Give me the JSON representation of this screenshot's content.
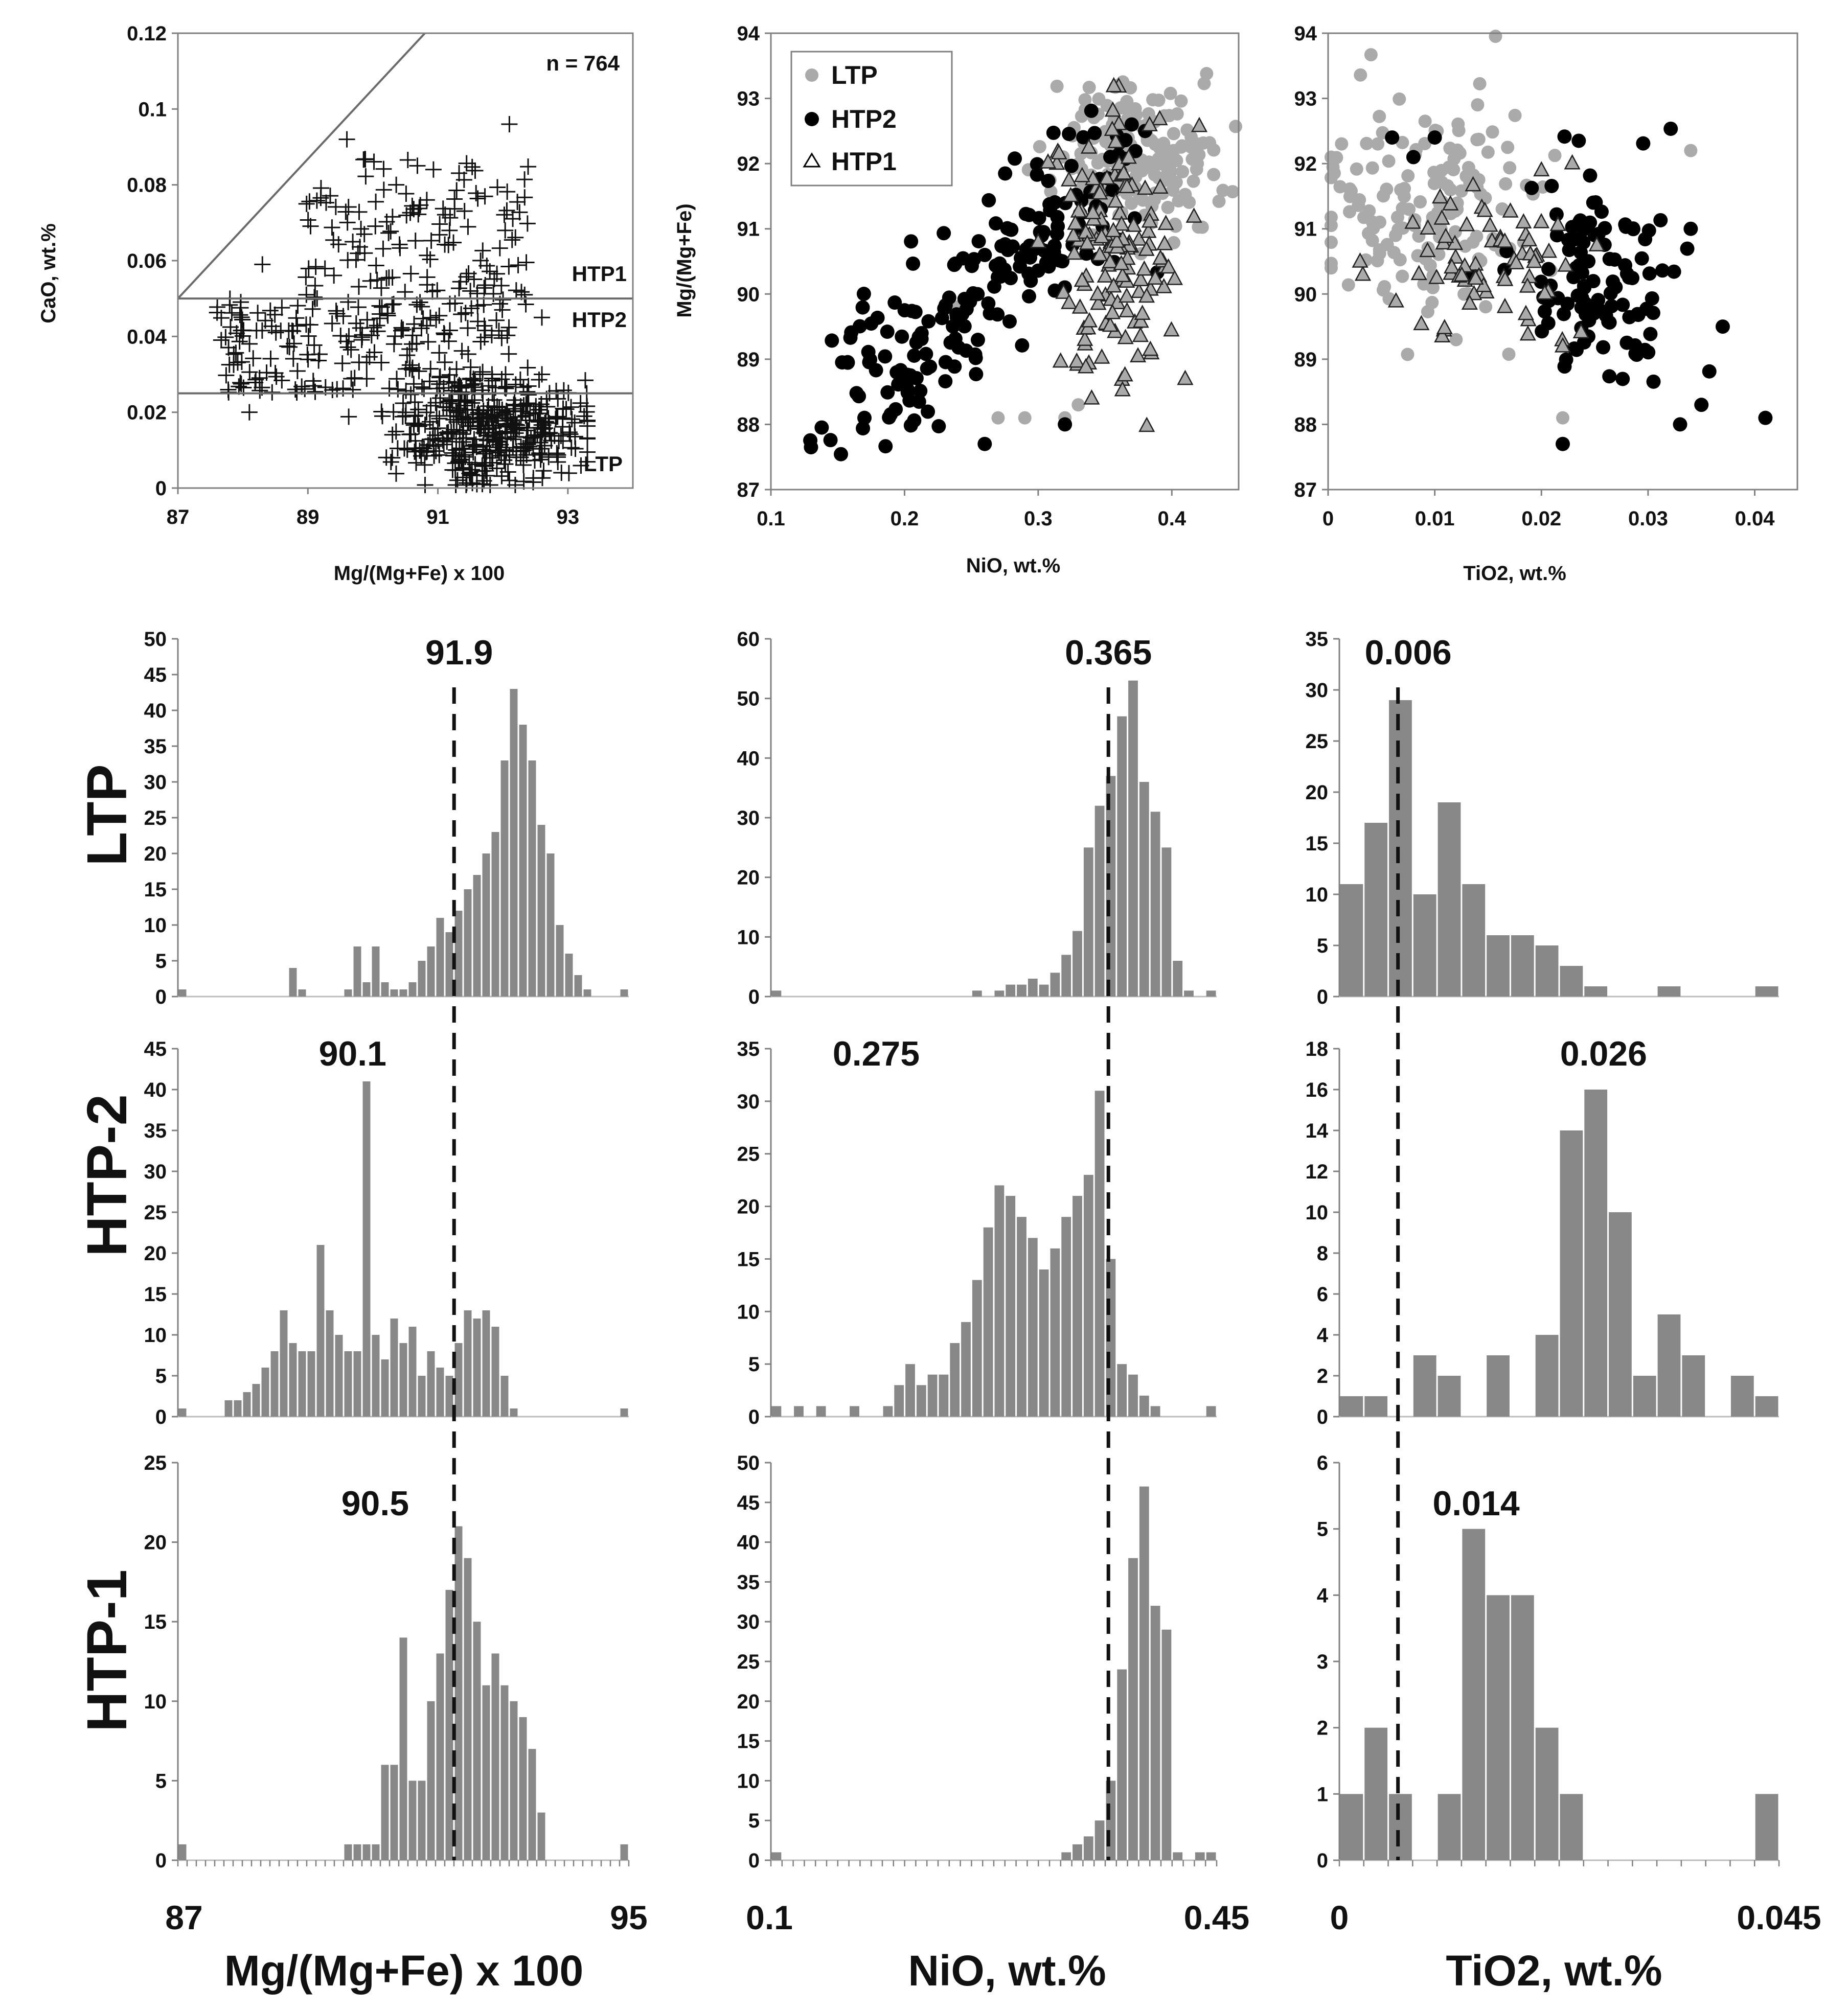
{
  "chart_data": [
    {
      "id": "scatter-cao",
      "type": "scatter",
      "xlabel": "Mg/(Mg+Fe) x 100",
      "ylabel": "CaO, wt.%",
      "xlim": [
        87,
        94
      ],
      "ylim": [
        0,
        0.12
      ],
      "xticks": [
        87,
        89,
        91,
        93
      ],
      "yticks": [
        0,
        0.02,
        0.04,
        0.06,
        0.08,
        0.1,
        0.12
      ],
      "ytick_labels": [
        "0",
        "0.02",
        "0.04",
        "0.06",
        "0.08",
        "0.1",
        "0.12"
      ],
      "annotation": "n = 764",
      "reference_lines": [
        {
          "label": "HTP1",
          "x": [
            87,
            94
          ],
          "y": [
            0.05,
            0.05
          ]
        },
        {
          "label": "HTP2",
          "x": [
            87,
            94
          ],
          "y": [
            0.025,
            0.025
          ]
        },
        {
          "label": "",
          "x": [
            87,
            90.8
          ],
          "y": [
            0.05,
            0.12
          ]
        }
      ],
      "region_labels": [
        {
          "label": "HTP1",
          "x": 93.7,
          "y": 0.056
        },
        {
          "label": "HTP2",
          "x": 93.7,
          "y": 0.043
        },
        {
          "label": "LTP",
          "x": 93.5,
          "y": 0.005
        }
      ],
      "marker": "plus",
      "point_groups": [
        {
          "name": "HTP1",
          "n": 140,
          "x_range": [
            88.9,
            92.4
          ],
          "y_range": [
            0.05,
            0.087
          ],
          "seed": 11,
          "extra": [
            [
              89.6,
              0.092
            ],
            [
              92.1,
              0.096
            ],
            [
              88.3,
              0.059
            ],
            [
              91.5,
              0.052
            ]
          ]
        },
        {
          "name": "HTP2",
          "n": 210,
          "x_range": [
            87.6,
            92.4
          ],
          "y_range": [
            0.025,
            0.05
          ],
          "seed": 23,
          "extra": [
            [
              88.1,
              0.02
            ],
            [
              92.6,
              0.045
            ]
          ]
        },
        {
          "name": "LTP",
          "n": 414,
          "x_range": [
            87.5,
            93.3
          ],
          "y_range": [
            0.0,
            0.03
          ],
          "center": [
            91.8,
            0.016
          ],
          "seed": 37,
          "extra": [
            [
              91.6,
              0.001
            ],
            [
              92.1,
              0.002
            ]
          ]
        }
      ]
    },
    {
      "id": "scatter-nio",
      "type": "scatter",
      "xlabel": "NiO, wt.%",
      "ylabel": "Mg/(Mg+Fe)",
      "xlim": [
        0.1,
        0.45
      ],
      "ylim": [
        87,
        94
      ],
      "xticks": [
        0.1,
        0.2,
        0.3,
        0.4
      ],
      "xtick_labels": [
        "0.1",
        "0.2",
        "0.3",
        "0.4"
      ],
      "yticks": [
        87,
        88,
        89,
        90,
        91,
        92,
        93,
        94
      ],
      "legend": [
        {
          "name": "LTP",
          "marker": "circle",
          "color": "#aaaaaa"
        },
        {
          "name": "HTP2",
          "marker": "circle",
          "color": "#000000"
        },
        {
          "name": "HTP1",
          "marker": "triangle",
          "color": "#aaaaaa"
        }
      ],
      "point_groups": [
        {
          "name": "LTP",
          "marker": "circle",
          "color": "#aaaaaa",
          "n": 180,
          "center": [
            0.375,
            92.1
          ],
          "spread": [
            0.03,
            0.55
          ],
          "seed": 101,
          "extra": [
            [
              0.27,
              88.1
            ],
            [
              0.29,
              88.1
            ],
            [
              0.32,
              88.1
            ],
            [
              0.33,
              88.3
            ],
            [
              0.24,
              89.8
            ],
            [
              0.25,
              90.5
            ],
            [
              0.36,
              93.2
            ],
            [
              0.42,
              92.3
            ]
          ]
        },
        {
          "name": "HTP2",
          "marker": "circle",
          "color": "#000000",
          "n": 190,
          "seed": 202,
          "trend": [
            [
              0.17,
              88.4
            ],
            [
              0.35,
              91.8
            ]
          ],
          "spread": [
            0.025,
            0.55
          ],
          "extra": [
            [
              0.13,
              87.65
            ],
            [
              0.17,
              88.1
            ],
            [
              0.26,
              87.7
            ],
            [
              0.32,
              88.0
            ],
            [
              0.37,
              92.6
            ],
            [
              0.38,
              92.5
            ]
          ]
        },
        {
          "name": "HTP1",
          "marker": "triangle",
          "color": "#aaaaaa",
          "n": 140,
          "center": [
            0.355,
            90.7
          ],
          "spread": [
            0.022,
            0.95
          ],
          "seed": 303,
          "extra": [
            [
              0.41,
              88.7
            ],
            [
              0.34,
              88.4
            ],
            [
              0.3,
              90.8
            ]
          ]
        }
      ]
    },
    {
      "id": "scatter-tio2",
      "type": "scatter",
      "xlabel": "TiO2, wt.%",
      "ylabel": "",
      "xlim": [
        0,
        0.044
      ],
      "ylim": [
        87,
        94
      ],
      "xticks": [
        0,
        0.01,
        0.02,
        0.03,
        0.04
      ],
      "xtick_labels": [
        "0",
        "0.01",
        "0.02",
        "0.03",
        "0.04"
      ],
      "yticks": [
        87,
        88,
        89,
        90,
        91,
        92,
        93,
        94
      ],
      "point_groups": [
        {
          "name": "LTP",
          "marker": "circle",
          "color": "#aaaaaa",
          "n": 150,
          "center": [
            0.009,
            91.4
          ],
          "spread": [
            0.006,
            0.8
          ],
          "seed": 404,
          "extra": [
            [
              0.022,
              88.1
            ],
            [
              0.034,
              92.2
            ],
            [
              0.0,
              90.4
            ],
            [
              0.012,
              89.3
            ]
          ]
        },
        {
          "name": "HTP2",
          "marker": "circle",
          "color": "#000000",
          "n": 110,
          "center": [
            0.026,
            90.2
          ],
          "spread": [
            0.004,
            0.75
          ],
          "seed": 505,
          "extra": [
            [
              0.006,
              92.4
            ],
            [
              0.008,
              92.1
            ],
            [
              0.01,
              92.4
            ],
            [
              0.022,
              87.7
            ],
            [
              0.041,
              88.1
            ],
            [
              0.037,
              89.5
            ],
            [
              0.034,
              91.0
            ],
            [
              0.033,
              88.0
            ],
            [
              0.035,
              88.3
            ],
            [
              0.0235,
              92.35
            ]
          ]
        },
        {
          "name": "HTP1",
          "marker": "triangle",
          "color": "#aaaaaa",
          "n": 70,
          "center": [
            0.016,
            90.5
          ],
          "spread": [
            0.004,
            0.6
          ],
          "seed": 606,
          "extra": [
            [
              0.003,
              90.5
            ],
            [
              0.022,
              89.2
            ],
            [
              0.02,
              91.9
            ]
          ]
        }
      ]
    },
    {
      "id": "hist-mg-ltp",
      "type": "bar",
      "row": "LTP",
      "x_range": [
        87,
        95
      ],
      "y_max": 50,
      "y_step": 5,
      "peak_label": "91.9",
      "peak_value": 91.9,
      "values": [
        1,
        0,
        0,
        0,
        0,
        0,
        0,
        0,
        0,
        0,
        0,
        0,
        4,
        1,
        0,
        0,
        0,
        0,
        1,
        7,
        2,
        7,
        2,
        1,
        1,
        2,
        5,
        7,
        11,
        9,
        12,
        15,
        17,
        20,
        23,
        33,
        43,
        38,
        33,
        24,
        20,
        10,
        6,
        3,
        1,
        0,
        0,
        0,
        1
      ]
    },
    {
      "id": "hist-nio-ltp",
      "type": "bar",
      "row": "LTP",
      "x_range": [
        0.1,
        0.45
      ],
      "y_max": 60,
      "y_step": 10,
      "peak_label": "0.365",
      "peak_value": 0.365,
      "values": [
        1,
        0,
        0,
        0,
        0,
        0,
        0,
        0,
        0,
        0,
        0,
        0,
        0,
        0,
        0,
        0,
        0,
        0,
        1,
        0,
        1,
        2,
        2,
        3,
        2,
        4,
        7,
        11,
        25,
        32,
        37,
        47,
        53,
        36,
        31,
        25,
        6,
        1,
        0,
        1
      ]
    },
    {
      "id": "hist-tio2-ltp",
      "type": "bar",
      "row": "LTP",
      "x_range": [
        0,
        0.045
      ],
      "y_max": 35,
      "y_step": 5,
      "peak_label": "0.006",
      "peak_value": 0.006,
      "values": [
        11,
        17,
        29,
        10,
        19,
        11,
        6,
        6,
        5,
        3,
        1,
        0,
        0,
        1,
        0,
        0,
        0,
        1
      ]
    },
    {
      "id": "hist-mg-htp2",
      "type": "bar",
      "row": "HTP-2",
      "x_range": [
        87,
        95
      ],
      "y_max": 45,
      "y_step": 5,
      "peak_label": "90.1",
      "peak_value": 90.1,
      "values": [
        1,
        0,
        0,
        0,
        0,
        2,
        2,
        3,
        4,
        6,
        8,
        13,
        9,
        8,
        8,
        21,
        13,
        10,
        8,
        8,
        41,
        10,
        7,
        12,
        9,
        11,
        5,
        8,
        6,
        5,
        9,
        13,
        12,
        13,
        11,
        5,
        1,
        0,
        0,
        0,
        0,
        0,
        0,
        0,
        0,
        0,
        0,
        0,
        1
      ]
    },
    {
      "id": "hist-nio-htp2",
      "type": "bar",
      "row": "HTP-2",
      "x_range": [
        0.1,
        0.45
      ],
      "y_max": 35,
      "y_step": 5,
      "peak_label": "0.275",
      "peak_value": 0.275,
      "values": [
        1,
        0,
        1,
        0,
        1,
        0,
        0,
        1,
        0,
        0,
        1,
        3,
        5,
        3,
        4,
        4,
        7,
        9,
        13,
        18,
        22,
        21,
        19,
        17,
        14,
        16,
        19,
        21,
        23,
        31,
        15,
        5,
        4,
        2,
        1,
        0,
        0,
        0,
        0,
        1
      ]
    },
    {
      "id": "hist-tio2-htp2",
      "type": "bar",
      "row": "HTP-2",
      "x_range": [
        0,
        0.045
      ],
      "y_max": 18,
      "y_step": 2,
      "peak_label": "0.026",
      "peak_value": 0.026,
      "values": [
        1,
        1,
        0,
        3,
        2,
        0,
        3,
        0,
        4,
        14,
        16,
        10,
        2,
        5,
        3,
        0,
        2,
        1
      ]
    },
    {
      "id": "hist-mg-htp1",
      "type": "bar",
      "row": "HTP-1",
      "x_range": [
        87,
        95
      ],
      "y_max": 25,
      "y_step": 5,
      "peak_label": "90.5",
      "peak_value": 90.5,
      "values": [
        1,
        0,
        0,
        0,
        0,
        0,
        0,
        0,
        0,
        0,
        0,
        0,
        0,
        0,
        0,
        0,
        0,
        0,
        1,
        1,
        1,
        1,
        6,
        6,
        14,
        5,
        5,
        10,
        13,
        17,
        21,
        19,
        15,
        11,
        13,
        11,
        10,
        9,
        7,
        3,
        0,
        0,
        0,
        0,
        0,
        0,
        0,
        0,
        1
      ]
    },
    {
      "id": "hist-nio-htp1",
      "type": "bar",
      "row": "HTP-1",
      "x_range": [
        0.1,
        0.45
      ],
      "y_max": 50,
      "y_step": 5,
      "peak_label": "",
      "peak_value": 0.365,
      "values": [
        1,
        0,
        0,
        0,
        0,
        0,
        0,
        0,
        0,
        0,
        0,
        0,
        0,
        0,
        0,
        0,
        0,
        0,
        0,
        0,
        0,
        0,
        0,
        0,
        0,
        0,
        1,
        2,
        3,
        5,
        10,
        24,
        38,
        47,
        32,
        29,
        1,
        0,
        1,
        1
      ]
    },
    {
      "id": "hist-tio2-htp1",
      "type": "bar",
      "row": "HTP-1",
      "x_range": [
        0,
        0.045
      ],
      "y_max": 6,
      "y_step": 1,
      "peak_label": "0.014",
      "peak_value": 0.014,
      "values": [
        1,
        2,
        1,
        0,
        1,
        5,
        4,
        4,
        2,
        1,
        0,
        0,
        0,
        0,
        0,
        0,
        0,
        1
      ]
    }
  ],
  "labels": {
    "row_ltp": "LTP",
    "row_htp2": "HTP-2",
    "row_htp1": "HTP-1",
    "x_mg_min": "87",
    "x_mg_max": "95",
    "x_nio_min": "0.1",
    "x_nio_max": "0.45",
    "x_tio2_min": "0",
    "x_tio2_max": "0.045",
    "title_mg": "Mg/(Mg+Fe) x 100",
    "title_nio": "NiO, wt.%",
    "title_tio2": "TiO2, wt.%"
  }
}
